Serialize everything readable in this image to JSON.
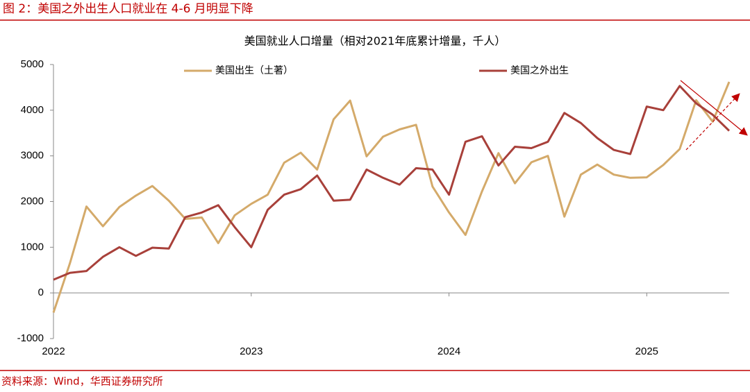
{
  "chart_data": {
    "type": "line",
    "figure_title": "图 2：美国之外出生人口就业在 4-6 月明显下降",
    "title": "美国就业人口增量（相对2021年底累计增量，千人）",
    "source": "资料来源：Wind，华西证券研究所",
    "categories": [
      "2022",
      null,
      null,
      null,
      null,
      null,
      null,
      null,
      null,
      null,
      null,
      null,
      "2023",
      null,
      null,
      null,
      null,
      null,
      null,
      null,
      null,
      null,
      null,
      null,
      "2024",
      null,
      null,
      null,
      null,
      null,
      null,
      null,
      null,
      null,
      null,
      null,
      "2025",
      null,
      null,
      null,
      null,
      null
    ],
    "series": [
      {
        "name": "美国出生（土著）",
        "color": "#d4aa6a",
        "values": [
          -430,
          650,
          1890,
          1460,
          1880,
          2130,
          2340,
          2020,
          1620,
          1650,
          1090,
          1700,
          1950,
          2150,
          2850,
          3070,
          2700,
          3800,
          4210,
          2990,
          3420,
          3580,
          3680,
          2330,
          1760,
          1270,
          2220,
          3060,
          2400,
          2860,
          3000,
          1670,
          2590,
          2810,
          2590,
          2520,
          2530,
          2800,
          3150,
          4220,
          3750,
          4620
        ]
      },
      {
        "name": "美国之外出生",
        "color": "#a8403a",
        "values": [
          290,
          440,
          480,
          790,
          1000,
          810,
          990,
          970,
          1660,
          1760,
          1920,
          1440,
          1000,
          1820,
          2150,
          2270,
          2570,
          2020,
          2040,
          2700,
          2520,
          2370,
          2730,
          2700,
          2150,
          3310,
          3430,
          2790,
          3200,
          3170,
          3310,
          3940,
          3720,
          3390,
          3130,
          3040,
          4080,
          4000,
          4530,
          4150,
          3900,
          3550
        ]
      }
    ],
    "ylim": [
      -1000,
      5000
    ],
    "yticks": [
      -1000,
      0,
      1000,
      2000,
      3000,
      4000,
      5000
    ],
    "grid": false
  }
}
